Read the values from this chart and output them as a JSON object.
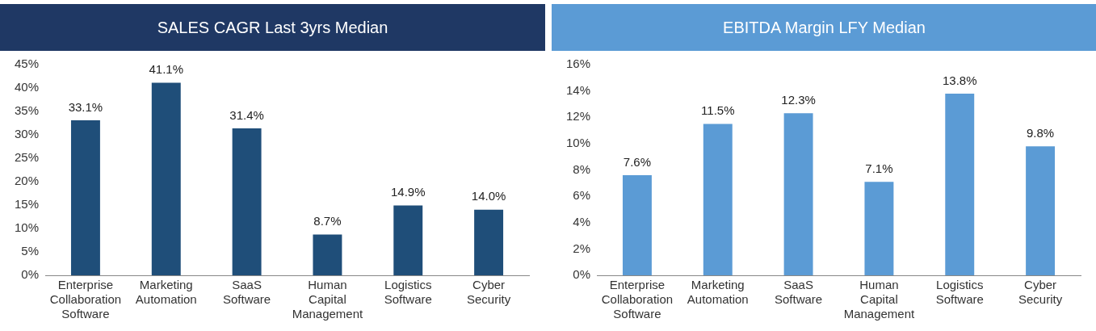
{
  "chart_data": [
    {
      "type": "bar",
      "title": "SALES CAGR Last 3yrs Median",
      "categories": [
        "Enterprise Collaboration Software",
        "Marketing Automation",
        "SaaS Software",
        "Human Capital Management",
        "Logistics Software",
        "Cyber Security"
      ],
      "values": [
        33.1,
        41.1,
        31.4,
        8.7,
        14.9,
        14.0
      ],
      "value_labels": [
        "33.1%",
        "41.1%",
        "31.4%",
        "8.7%",
        "14.9%",
        "14.0%"
      ],
      "color": "#1f4e79",
      "ylim": [
        0,
        45
      ],
      "yticks": [
        {
          "value": 0,
          "label": "0%"
        },
        {
          "value": 5,
          "label": "5%"
        },
        {
          "value": 10,
          "label": "10%"
        },
        {
          "value": 15,
          "label": "15%"
        },
        {
          "value": 20,
          "label": "20%"
        },
        {
          "value": 25,
          "label": "25%"
        },
        {
          "value": 30,
          "label": "30%"
        },
        {
          "value": 35,
          "label": "35%"
        },
        {
          "value": 40,
          "label": "40%"
        },
        {
          "value": 45,
          "label": "45%"
        }
      ],
      "legend": false,
      "grid": false
    },
    {
      "type": "bar",
      "title": "EBITDA Margin LFY Median",
      "categories": [
        "Enterprise Collaboration Software",
        "Marketing Automation",
        "SaaS Software",
        "Human Capital Management",
        "Logistics Software",
        "Cyber Security"
      ],
      "values": [
        7.6,
        11.5,
        12.3,
        7.1,
        13.8,
        9.8
      ],
      "value_labels": [
        "7.6%",
        "11.5%",
        "12.3%",
        "7.1%",
        "13.8%",
        "9.8%"
      ],
      "color": "#5b9bd5",
      "ylim": [
        0,
        16
      ],
      "yticks": [
        {
          "value": 0,
          "label": "0%"
        },
        {
          "value": 2,
          "label": "2%"
        },
        {
          "value": 4,
          "label": "4%"
        },
        {
          "value": 6,
          "label": "6%"
        },
        {
          "value": 8,
          "label": "8%"
        },
        {
          "value": 10,
          "label": "10%"
        },
        {
          "value": 12,
          "label": "12%"
        },
        {
          "value": 14,
          "label": "14%"
        },
        {
          "value": 16,
          "label": "16%"
        }
      ],
      "legend": false,
      "grid": false
    }
  ]
}
